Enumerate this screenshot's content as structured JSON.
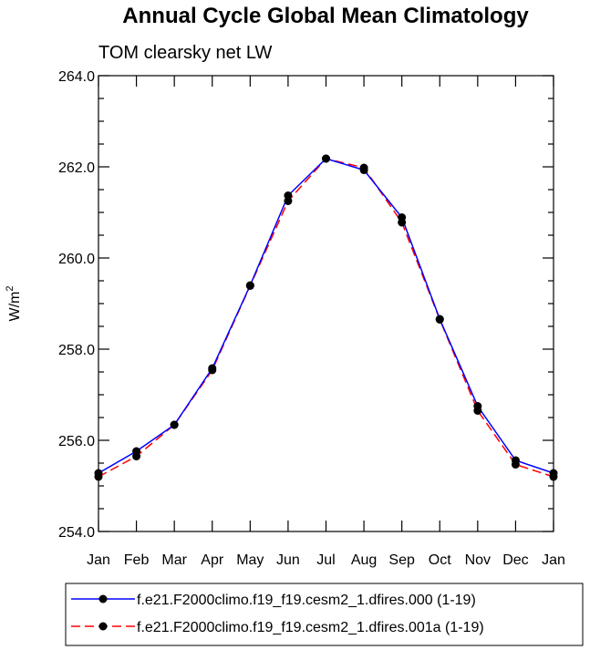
{
  "chart_data": {
    "type": "line",
    "title": "Annual Cycle Global Mean Climatology",
    "subtitle": "TOM clearsky net LW",
    "ylabel": "W/m",
    "ylabel_sup": "2",
    "xlabel": "",
    "categories": [
      "Jan",
      "Feb",
      "Mar",
      "Apr",
      "May",
      "Jun",
      "Jul",
      "Aug",
      "Sep",
      "Oct",
      "Nov",
      "Dec",
      "Jan"
    ],
    "ylim": [
      254.0,
      264.0
    ],
    "yticks": [
      "254.0",
      "256.0",
      "258.0",
      "260.0",
      "262.0",
      "264.0"
    ],
    "series": [
      {
        "name": "f.e21.F2000climo.f19_f19.cesm2_1.dfires.000 (1-19)",
        "color": "#0000ff",
        "dash": "solid",
        "values": [
          255.28,
          255.76,
          256.34,
          257.58,
          259.4,
          261.37,
          262.18,
          261.93,
          260.89,
          258.66,
          256.75,
          255.56,
          255.28
        ]
      },
      {
        "name": "f.e21.F2000climo.f19_f19.cesm2_1.dfires.001a (1-19)",
        "color": "#ff0000",
        "dash": "dashed",
        "values": [
          255.2,
          255.65,
          256.34,
          257.54,
          259.39,
          261.25,
          262.18,
          261.98,
          260.78,
          258.65,
          256.65,
          255.47,
          255.2
        ]
      }
    ]
  }
}
